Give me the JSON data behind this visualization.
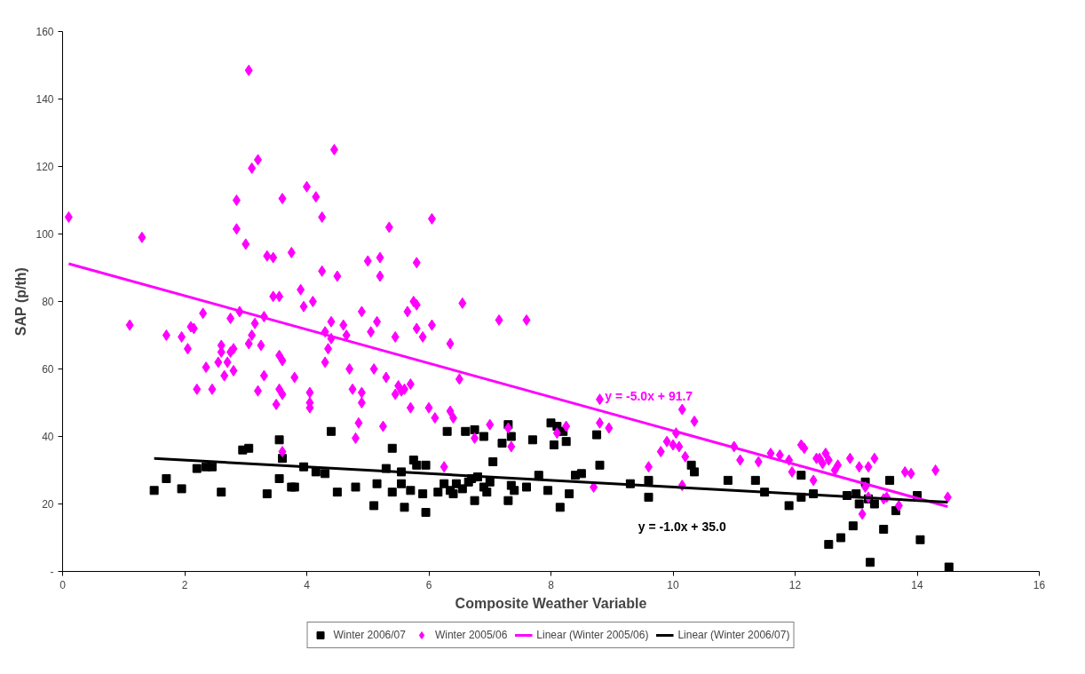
{
  "chart_data": {
    "type": "scatter",
    "xlabel": "Composite Weather Variable",
    "ylabel": "SAP (p/th)",
    "xlim": [
      0,
      16
    ],
    "xticks": [
      0,
      2,
      4,
      6,
      8,
      10,
      12,
      14,
      16
    ],
    "ylim": [
      0,
      160
    ],
    "yticks": [
      {
        "value": 0,
        "label": "-"
      },
      20,
      40,
      60,
      80,
      100,
      120,
      140,
      160
    ],
    "grid": false,
    "legend": "bottom",
    "annotations": [
      "y = -5.0x + 91.7",
      "y = -1.0x + 35.0"
    ],
    "series": [
      {
        "name": "Winter 2006/07",
        "color": "#000000",
        "marker": "square",
        "x": [
          1.5,
          1.7,
          1.95,
          2.2,
          2.35,
          2.45,
          2.6,
          2.95,
          3.05,
          3.35,
          3.55,
          3.55,
          3.6,
          3.75,
          3.8,
          3.95,
          4.15,
          4.3,
          4.4,
          4.5,
          4.8,
          5.1,
          5.15,
          5.3,
          5.4,
          5.4,
          5.55,
          5.55,
          5.6,
          5.7,
          5.75,
          5.8,
          5.9,
          5.95,
          5.95,
          6.15,
          6.25,
          6.3,
          6.35,
          6.4,
          6.45,
          6.55,
          6.6,
          6.65,
          6.7,
          6.75,
          6.75,
          6.8,
          6.9,
          6.9,
          6.95,
          7.0,
          7.05,
          7.2,
          7.3,
          7.3,
          7.35,
          7.35,
          7.4,
          7.6,
          7.7,
          7.8,
          7.95,
          8.0,
          8.05,
          8.1,
          8.15,
          8.2,
          8.25,
          8.3,
          8.4,
          8.5,
          8.75,
          8.8,
          9.3,
          9.6,
          9.6,
          10.3,
          10.35,
          10.9,
          11.35,
          11.5,
          11.9,
          12.1,
          12.1,
          12.3,
          12.55,
          12.75,
          12.85,
          12.95,
          13.0,
          13.05,
          13.15,
          13.2,
          13.3,
          13.45,
          13.55,
          13.65,
          14.0,
          14.05,
          13.23,
          14.52
        ],
        "values": [
          24,
          27.5,
          24.5,
          30.5,
          31,
          31,
          23.5,
          36,
          36.5,
          23,
          39,
          27.5,
          33.5,
          25,
          25,
          31,
          29.5,
          29,
          41.5,
          23.5,
          25,
          19.5,
          26,
          30.5,
          36.5,
          23.5,
          29.5,
          26,
          19,
          24,
          33,
          31.5,
          23,
          31.5,
          17.5,
          23.5,
          26,
          41.5,
          24,
          23,
          26,
          24.5,
          41.5,
          26.5,
          27.5,
          21,
          42,
          28,
          25,
          40,
          23.5,
          26.5,
          32.5,
          38,
          21,
          43.5,
          40,
          25.5,
          24,
          25,
          39,
          28.5,
          24,
          44,
          37.5,
          43,
          19,
          41.5,
          38.5,
          23,
          28.5,
          29,
          40.5,
          31.5,
          26,
          22,
          27,
          31.5,
          29.5,
          27,
          27,
          23.5,
          19.5,
          28.5,
          22,
          23,
          8,
          10,
          22.5,
          13.5,
          23,
          20,
          26.5,
          21.5,
          20,
          12.5,
          27,
          18,
          22.5,
          9.4,
          2.7,
          1.3
        ]
      },
      {
        "name": "Winter 2005/06",
        "color": "#ff00ff",
        "marker": "diamond",
        "x": [
          0.1,
          1.1,
          1.3,
          1.7,
          1.95,
          2.05,
          2.1,
          2.15,
          2.2,
          2.3,
          2.35,
          2.45,
          2.55,
          2.6,
          2.6,
          2.65,
          2.7,
          2.75,
          2.75,
          2.8,
          2.8,
          2.85,
          2.85,
          2.9,
          3.0,
          3.05,
          3.05,
          3.1,
          3.1,
          3.15,
          3.2,
          3.2,
          3.25,
          3.3,
          3.3,
          3.35,
          3.45,
          3.45,
          3.5,
          3.55,
          3.55,
          3.55,
          3.6,
          3.6,
          3.6,
          3.6,
          3.75,
          3.8,
          3.9,
          3.95,
          4.0,
          4.05,
          4.05,
          4.05,
          4.1,
          4.15,
          4.25,
          4.25,
          4.3,
          4.3,
          4.35,
          4.4,
          4.4,
          4.45,
          4.5,
          4.6,
          4.65,
          4.7,
          4.75,
          4.8,
          4.85,
          4.9,
          4.9,
          4.9,
          5.0,
          5.05,
          5.1,
          5.15,
          5.2,
          5.2,
          5.25,
          5.3,
          5.35,
          5.45,
          5.45,
          5.5,
          5.55,
          5.6,
          5.65,
          5.7,
          5.7,
          5.75,
          5.8,
          5.8,
          5.8,
          5.9,
          6.0,
          6.05,
          6.05,
          6.1,
          6.25,
          6.35,
          6.35,
          6.4,
          6.5,
          6.55,
          6.75,
          7.0,
          7.15,
          7.3,
          7.35,
          7.6,
          8.1,
          8.25,
          8.7,
          8.8,
          8.8,
          8.95,
          9.6,
          9.8,
          9.9,
          10.0,
          10.05,
          10.1,
          10.15,
          10.15,
          10.2,
          10.35,
          11.0,
          11.1,
          11.4,
          11.6,
          11.75,
          11.9,
          11.95,
          12.1,
          12.15,
          12.3,
          12.35,
          12.4,
          12.45,
          12.5,
          12.55,
          12.65,
          12.7,
          12.9,
          13.05,
          13.1,
          13.15,
          13.2,
          13.3,
          13.2,
          13.45,
          13.5,
          13.7,
          13.8,
          13.9,
          14.3,
          14.5
        ],
        "values": [
          105,
          73,
          99,
          70,
          69.5,
          66,
          72.5,
          72,
          54,
          76.5,
          60.5,
          54,
          62,
          65,
          67,
          58,
          62,
          75,
          65,
          66,
          59.5,
          110,
          101.5,
          77,
          97,
          148.5,
          67.5,
          70,
          119.5,
          73.5,
          53.5,
          122,
          67,
          75.5,
          58,
          93.5,
          81.5,
          93,
          49.5,
          81.5,
          54,
          64,
          52.5,
          62.5,
          110.5,
          35.5,
          94.5,
          57.5,
          83.5,
          78.5,
          114,
          50,
          53,
          48.5,
          80,
          111,
          89,
          105,
          71,
          62,
          66,
          74,
          69,
          125,
          87.5,
          73,
          70,
          60,
          54,
          39.5,
          44,
          77,
          53,
          50,
          92,
          71,
          60,
          74,
          87.5,
          93,
          43,
          57.5,
          102,
          52.5,
          69.5,
          55,
          53.5,
          54,
          77,
          48.5,
          55.5,
          80,
          79,
          91.5,
          72,
          69.5,
          48.5,
          104.5,
          73,
          45.5,
          31,
          67.5,
          47.5,
          45.5,
          57,
          79.5,
          39.5,
          43.5,
          74.5,
          42.5,
          37,
          74.5,
          41,
          43,
          25,
          51,
          44,
          42.5,
          31,
          35.5,
          38.5,
          37.5,
          41,
          37,
          48,
          25.5,
          34,
          44.5,
          37,
          33,
          32.5,
          35,
          34.5,
          33,
          29.5,
          37.5,
          36.5,
          27,
          33.5,
          33.5,
          32,
          35,
          33,
          30,
          31.5,
          33.5,
          31,
          17,
          25,
          31,
          33.5,
          22,
          21.5,
          22,
          19.5,
          29.5,
          29,
          30,
          22
        ]
      },
      {
        "name": "Linear (Winter 2005/06)",
        "type": "line",
        "color": "#ff00ff",
        "x": [
          0.1,
          14.5
        ],
        "values": [
          91.2,
          19.2
        ]
      },
      {
        "name": "Linear (Winter 2006/07)",
        "type": "line",
        "color": "#000000",
        "x": [
          1.5,
          14.5
        ],
        "values": [
          33.5,
          20.5
        ]
      }
    ]
  }
}
